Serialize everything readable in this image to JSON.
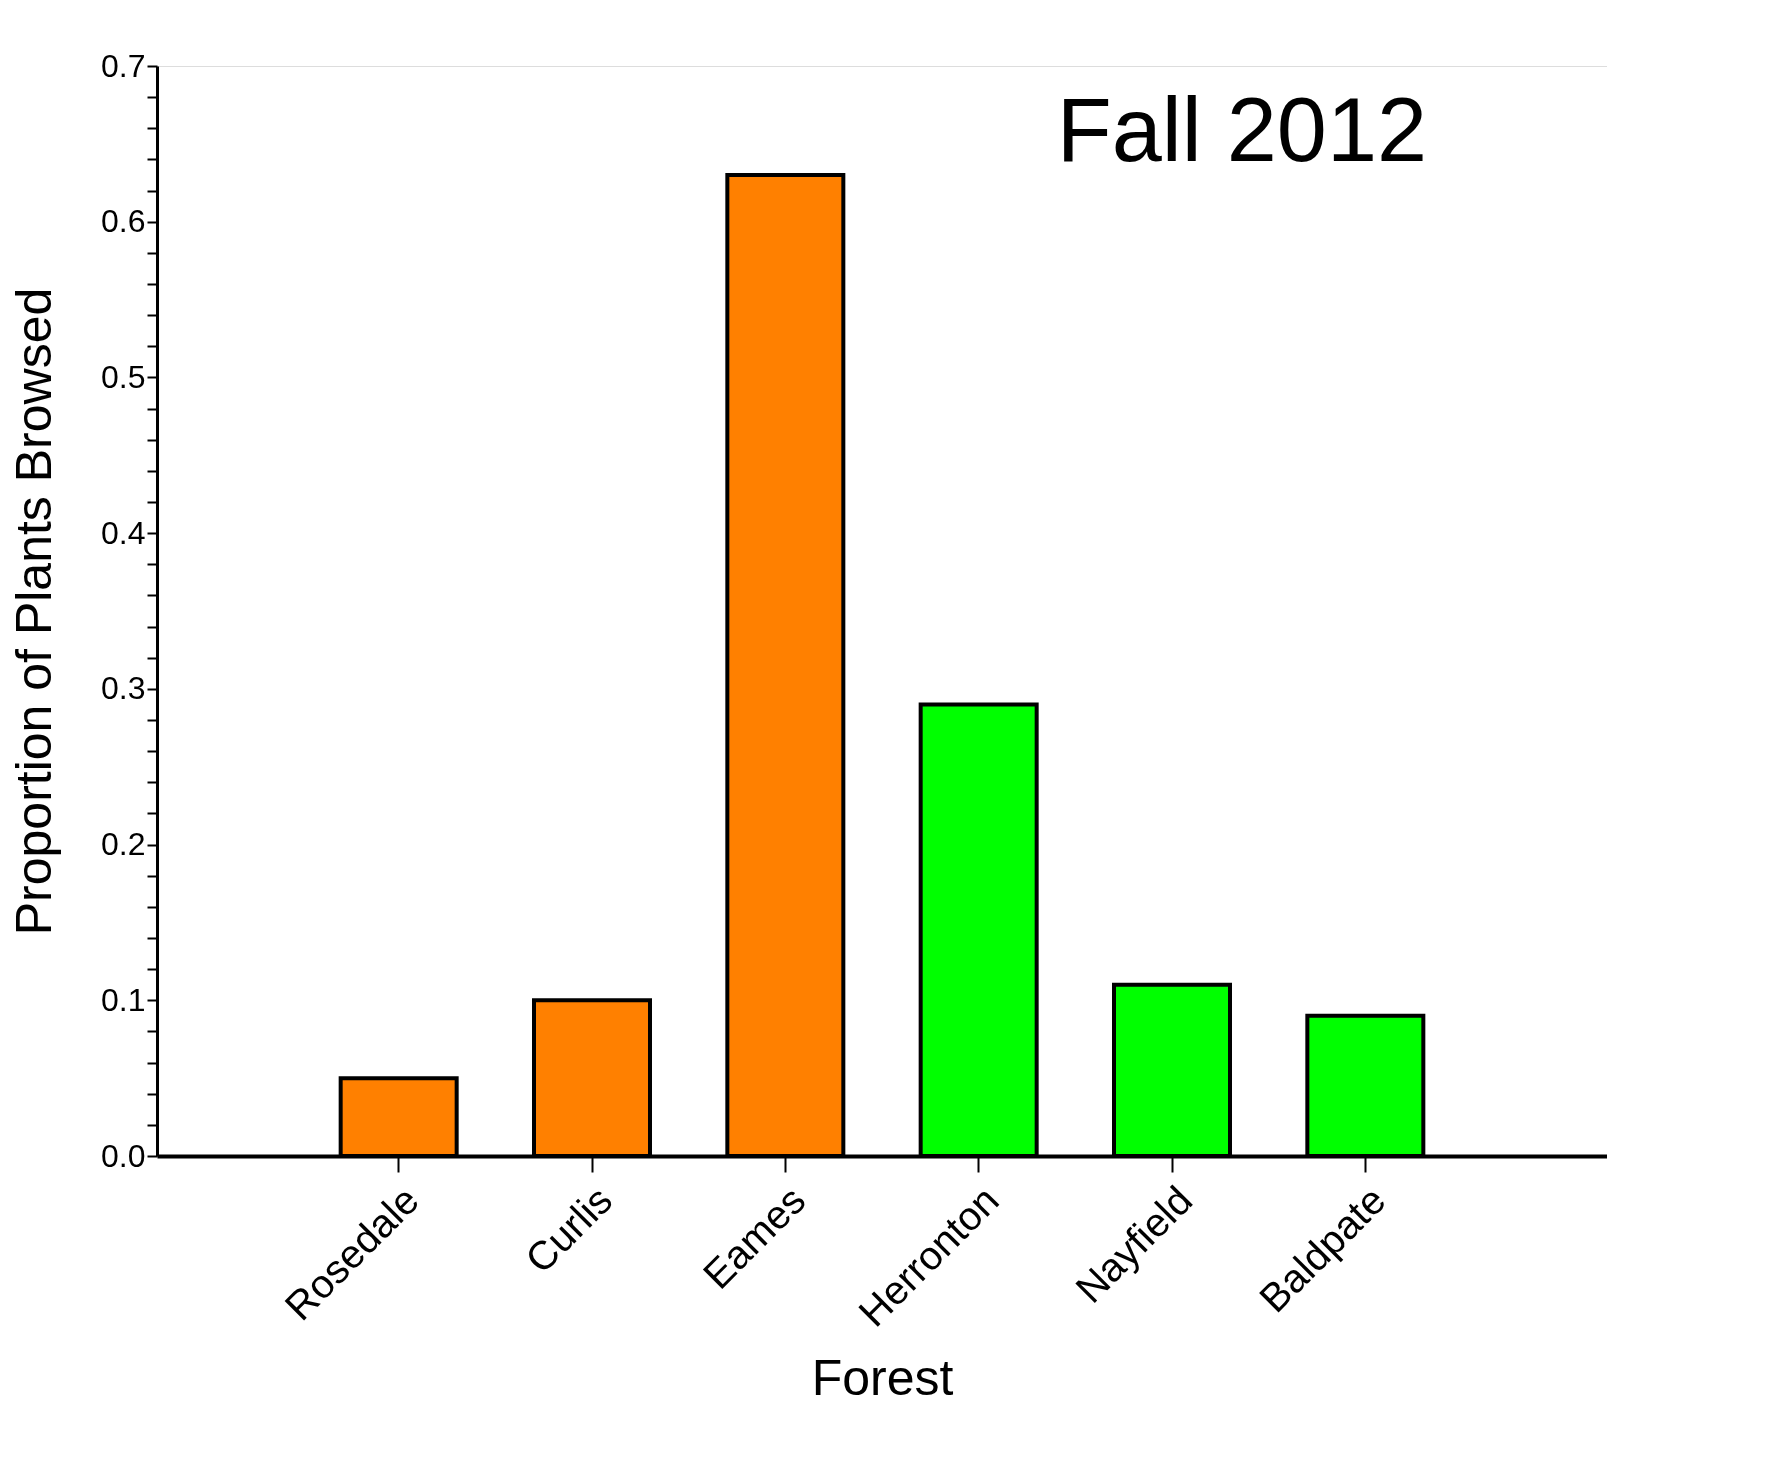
{
  "chart_data": {
    "type": "bar",
    "title": "Fall 2012",
    "xlabel": "Forest",
    "ylabel": "Proportion  of  Plants  Browsed",
    "categories": [
      "Rosedale",
      "Curlis",
      "Eames",
      "Herronton",
      "Nayfield",
      "Baldpate"
    ],
    "values": [
      0.05,
      0.1,
      0.63,
      0.29,
      0.11,
      0.09
    ],
    "colors": [
      "#ff8000",
      "#ff8000",
      "#ff8000",
      "#00ff00",
      "#00ff00",
      "#00ff00"
    ],
    "ylim": [
      0,
      0.7
    ],
    "yticks": [
      {
        "value": 0,
        "label": "0.0"
      },
      {
        "value": 0.02,
        "label": null
      },
      {
        "value": 0.04,
        "label": null
      },
      {
        "value": 0.06,
        "label": null
      },
      {
        "value": 0.08,
        "label": null
      },
      0.1,
      {
        "value": 0.12,
        "label": null
      },
      {
        "value": 0.14,
        "label": null
      },
      {
        "value": 0.16,
        "label": null
      },
      {
        "value": 0.18,
        "label": null
      },
      0.2,
      {
        "value": 0.22,
        "label": null
      },
      {
        "value": 0.24,
        "label": null
      },
      {
        "value": 0.26,
        "label": null
      },
      {
        "value": 0.28,
        "label": null
      },
      0.3,
      {
        "value": 0.32,
        "label": null
      },
      {
        "value": 0.34,
        "label": null
      },
      {
        "value": 0.36,
        "label": null
      },
      {
        "value": 0.38,
        "label": null
      },
      0.4,
      {
        "value": 0.42,
        "label": null
      },
      {
        "value": 0.44,
        "label": null
      },
      {
        "value": 0.46,
        "label": null
      },
      {
        "value": 0.48,
        "label": null
      },
      0.5,
      {
        "value": 0.52,
        "label": null
      },
      {
        "value": 0.54,
        "label": null
      },
      {
        "value": 0.56,
        "label": null
      },
      {
        "value": 0.58,
        "label": null
      },
      0.6,
      {
        "value": 0.62,
        "label": null
      },
      {
        "value": 0.64,
        "label": null
      },
      {
        "value": 0.66,
        "label": null
      },
      {
        "value": 0.68,
        "label": null
      },
      0.7
    ],
    "grid": false
  }
}
